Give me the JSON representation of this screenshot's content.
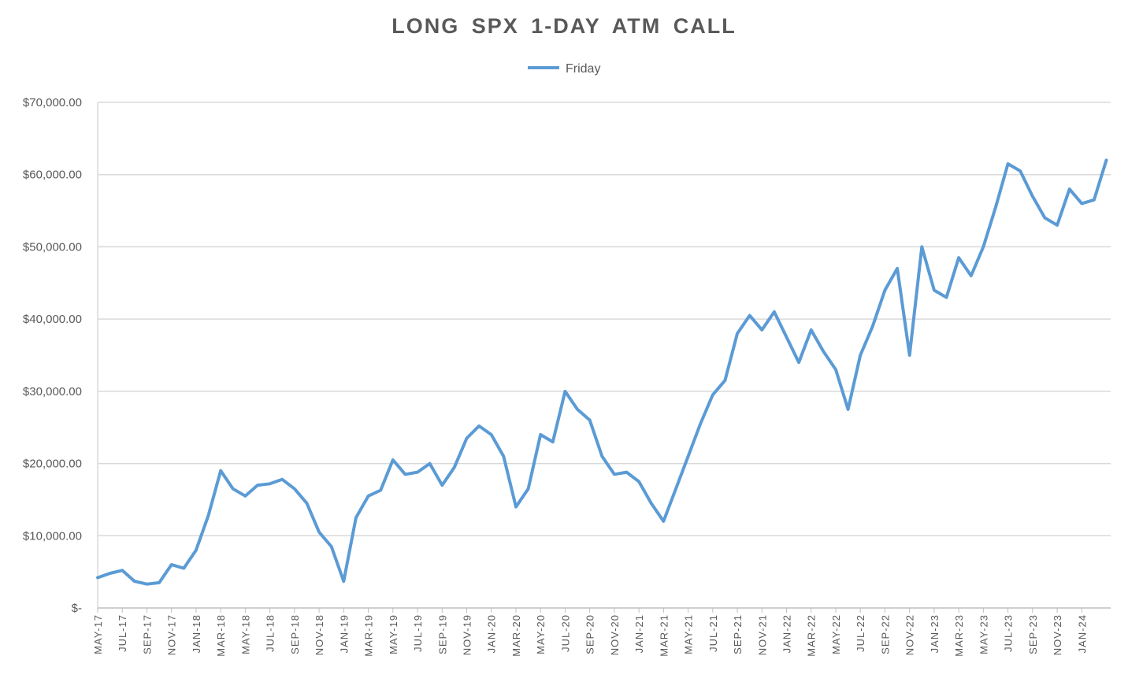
{
  "chart_data": {
    "type": "line",
    "title": "LONG  SPX  1-DAY  ATM  CALL",
    "legend_position": "top",
    "grid": true,
    "colors": {
      "series": "#5b9bd5",
      "grid": "#d9d9d9",
      "text": "#595959"
    },
    "ylim": [
      0,
      70000
    ],
    "y_ticks": [
      0,
      10000,
      20000,
      30000,
      40000,
      50000,
      60000,
      70000
    ],
    "y_tick_labels": [
      "$-",
      "$10,000.00",
      "$20,000.00",
      "$30,000.00",
      "$40,000.00",
      "$50,000.00",
      "$60,000.00",
      "$70,000.00"
    ],
    "x_range": [
      "2017-05",
      "2024-03"
    ],
    "x_tick_labels": [
      "MAY-17",
      "JUL-17",
      "SEP-17",
      "NOV-17",
      "JAN-18",
      "MAR-18",
      "MAY-18",
      "JUL-18",
      "SEP-18",
      "NOV-18",
      "JAN-19",
      "MAR-19",
      "MAY-19",
      "JUL-19",
      "SEP-19",
      "NOV-19",
      "JAN-20",
      "MAR-20",
      "MAY-20",
      "JUL-20",
      "SEP-20",
      "NOV-20",
      "JAN-21",
      "MAR-21",
      "MAY-21",
      "JUL-21",
      "SEP-21",
      "NOV-21",
      "JAN-22",
      "MAR-22",
      "MAY-22",
      "JUL-22",
      "SEP-22",
      "NOV-22",
      "JAN-23",
      "MAR-23",
      "MAY-23",
      "JUL-23",
      "SEP-23",
      "NOV-23",
      "JAN-24"
    ],
    "series": [
      {
        "name": "Friday",
        "x": [
          "2017-05",
          "2017-06",
          "2017-07",
          "2017-08",
          "2017-09",
          "2017-10",
          "2017-11",
          "2017-12",
          "2018-01",
          "2018-02",
          "2018-03",
          "2018-04",
          "2018-05",
          "2018-06",
          "2018-07",
          "2018-08",
          "2018-09",
          "2018-10",
          "2018-11",
          "2018-12",
          "2019-01",
          "2019-02",
          "2019-03",
          "2019-04",
          "2019-05",
          "2019-06",
          "2019-07",
          "2019-08",
          "2019-09",
          "2019-10",
          "2019-11",
          "2019-12",
          "2020-01",
          "2020-02",
          "2020-03",
          "2020-04",
          "2020-05",
          "2020-06",
          "2020-07",
          "2020-08",
          "2020-09",
          "2020-10",
          "2020-11",
          "2020-12",
          "2021-01",
          "2021-02",
          "2021-03",
          "2021-04",
          "2021-05",
          "2021-06",
          "2021-07",
          "2021-08",
          "2021-09",
          "2021-10",
          "2021-11",
          "2021-12",
          "2022-01",
          "2022-02",
          "2022-03",
          "2022-04",
          "2022-05",
          "2022-06",
          "2022-07",
          "2022-08",
          "2022-09",
          "2022-10",
          "2022-11",
          "2022-12",
          "2023-01",
          "2023-02",
          "2023-03",
          "2023-04",
          "2023-05",
          "2023-06",
          "2023-07",
          "2023-08",
          "2023-09",
          "2023-10",
          "2023-11",
          "2023-12",
          "2024-01",
          "2024-02",
          "2024-03"
        ],
        "values": [
          4200,
          4800,
          5200,
          3700,
          3300,
          3500,
          6000,
          5500,
          8000,
          12800,
          19000,
          16500,
          15500,
          17000,
          17200,
          17800,
          16500,
          14500,
          10500,
          8500,
          3700,
          12500,
          15500,
          16300,
          20500,
          18500,
          18800,
          20000,
          17000,
          19500,
          23500,
          25200,
          24000,
          21000,
          14000,
          16500,
          24000,
          23000,
          30000,
          27500,
          26000,
          21000,
          18500,
          18800,
          17500,
          14500,
          12000,
          16500,
          21000,
          25500,
          29500,
          31500,
          38000,
          40500,
          38500,
          41000,
          37500,
          34000,
          38500,
          35500,
          33000,
          27500,
          35000,
          39000,
          44000,
          47000,
          35000,
          50000,
          44000,
          43000,
          48500,
          46000,
          50000,
          55500,
          61500,
          60500,
          57000,
          54000,
          53000,
          58000,
          56000,
          56500,
          62000
        ]
      }
    ]
  }
}
